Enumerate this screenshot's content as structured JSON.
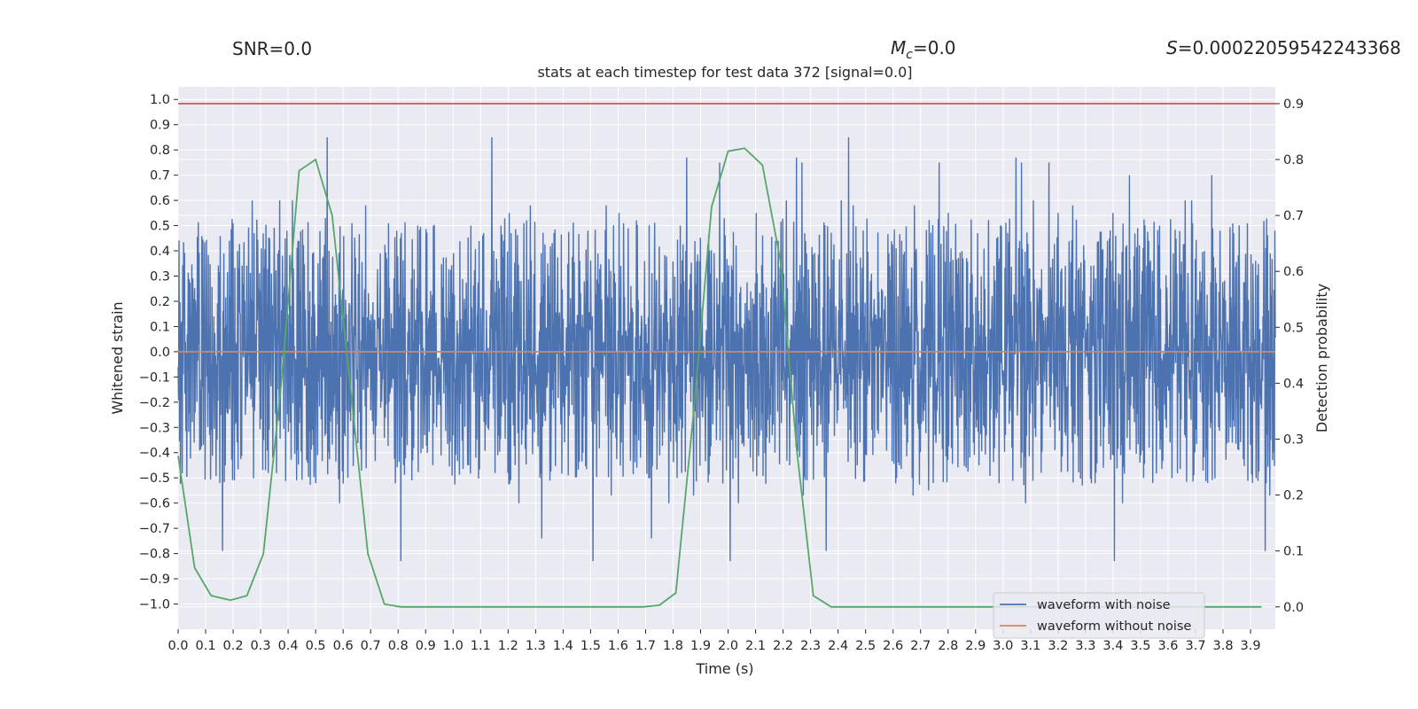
{
  "annotations": {
    "snr": "SNR=0.0",
    "mc_symbol": "M",
    "mc_subscript": "c",
    "mc_value": "=0.0",
    "s_symbol": "S",
    "s_value": "=0.00022059542243368"
  },
  "chart_data": {
    "type": "line",
    "title": "stats at each timestep for test data 372 [signal=0.0]",
    "xlabel": "Time (s)",
    "ylabel_left": "Whitened strain",
    "ylabel_right": "Detection probability",
    "xlim": [
      0.0,
      3.99
    ],
    "ylim_left": [
      -1.1,
      1.05
    ],
    "ylim_right": [
      -0.04,
      0.93
    ],
    "x_ticks": [
      "0.0",
      "0.1",
      "0.2",
      "0.3",
      "0.4",
      "0.5",
      "0.6",
      "0.7",
      "0.8",
      "0.9",
      "1.0",
      "1.1",
      "1.2",
      "1.3",
      "1.4",
      "1.5",
      "1.6",
      "1.7",
      "1.8",
      "1.9",
      "2.0",
      "2.1",
      "2.2",
      "2.3",
      "2.4",
      "2.5",
      "2.6",
      "2.7",
      "2.8",
      "2.9",
      "3.0",
      "3.1",
      "3.2",
      "3.3",
      "3.4",
      "3.5",
      "3.6",
      "3.7",
      "3.8",
      "3.9"
    ],
    "y_ticks_left": [
      "−1.0",
      "−0.9",
      "−0.8",
      "−0.7",
      "−0.6",
      "−0.5",
      "−0.4",
      "−0.3",
      "−0.2",
      "−0.1",
      "0.0",
      "0.1",
      "0.2",
      "0.3",
      "0.4",
      "0.5",
      "0.6",
      "0.7",
      "0.8",
      "0.9",
      "1.0"
    ],
    "y_ticks_right": [
      "0.0",
      "0.1",
      "0.2",
      "0.3",
      "0.4",
      "0.5",
      "0.6",
      "0.7",
      "0.8",
      "0.9"
    ],
    "grid": true,
    "legend_position": "lower-right",
    "series": [
      {
        "name": "waveform with noise",
        "axis": "left",
        "color": "#4c72b0",
        "description_values": "dense noisy strain sampled across 0–4 s, amplitude roughly between -1.0 and 0.95"
      },
      {
        "name": "waveform without noise",
        "axis": "left",
        "color": "#dd8452",
        "x": [
          0.0,
          3.99
        ],
        "y": [
          0.0,
          0.0
        ]
      },
      {
        "name": "",
        "axis": "right",
        "color": "#55a868",
        "x": [
          0.0,
          0.06,
          0.12,
          0.19,
          0.25,
          0.31,
          0.375,
          0.44,
          0.5,
          0.56,
          0.625,
          0.69,
          0.75,
          0.81,
          0.875,
          1.0,
          1.25,
          1.5,
          1.69,
          1.75,
          1.81,
          1.875,
          1.94,
          2.0,
          2.06,
          2.125,
          2.19,
          2.25,
          2.31,
          2.375,
          2.5,
          2.75,
          3.0,
          3.25,
          3.5,
          3.75,
          3.94
        ],
        "y": [
          0.27,
          0.07,
          0.02,
          0.012,
          0.02,
          0.095,
          0.4,
          0.78,
          0.8,
          0.7,
          0.4,
          0.095,
          0.005,
          0.0,
          0.0,
          0.0,
          0.0,
          0.0,
          0.0,
          0.003,
          0.025,
          0.35,
          0.715,
          0.815,
          0.82,
          0.79,
          0.62,
          0.28,
          0.02,
          0.0,
          0.0,
          0.0,
          0.0,
          0.0,
          0.0,
          0.0,
          0.0
        ]
      },
      {
        "name": "",
        "axis": "right",
        "color": "#c44e52",
        "x": [
          0.0,
          3.99
        ],
        "y": [
          0.9,
          0.9
        ]
      }
    ],
    "noise_values": [
      0.36,
      -0.62,
      0.41,
      -0.22,
      0.55,
      -0.41,
      0.28,
      -0.83,
      0.47,
      -0.33,
      0.6,
      -0.5,
      0.33,
      -0.27,
      0.22,
      -0.74,
      0.39,
      -0.45,
      0.5,
      -0.31,
      0.27,
      -0.55,
      0.44,
      -0.38,
      0.31,
      -0.6,
      0.85,
      -0.48,
      0.35,
      -0.29,
      0.4,
      -0.52,
      0.77,
      -0.44,
      0.29,
      -0.36,
      0.58,
      -0.79,
      0.36,
      -0.41,
      0.7,
      -0.33,
      0.6,
      -0.46,
      0.75,
      -0.4,
      0.5,
      -0.57,
      0.3,
      -0.35,
      0.58,
      -0.42,
      0.44,
      -0.6,
      0.39,
      -0.27,
      0.6,
      -0.7,
      0.48,
      -0.37
    ]
  }
}
